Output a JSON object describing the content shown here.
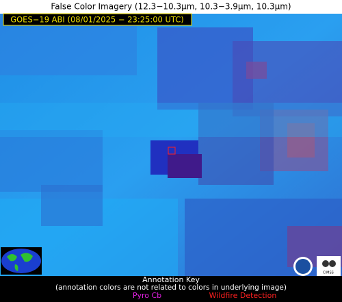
{
  "header": {
    "title": "False Color Imagery (12.3−10.3µm, 10.3−3.9µm, 10.3µm)"
  },
  "image": {
    "label": "GOES−19 ABI (08/01/2025 − 23:25:00 UTC)",
    "logo_text": "CIMSS"
  },
  "key": {
    "title": "Annotation Key",
    "note": "(annotation colors are not related to colors in underlying image)",
    "items": [
      "Pyro Cb",
      "Wildfire Detection"
    ]
  }
}
